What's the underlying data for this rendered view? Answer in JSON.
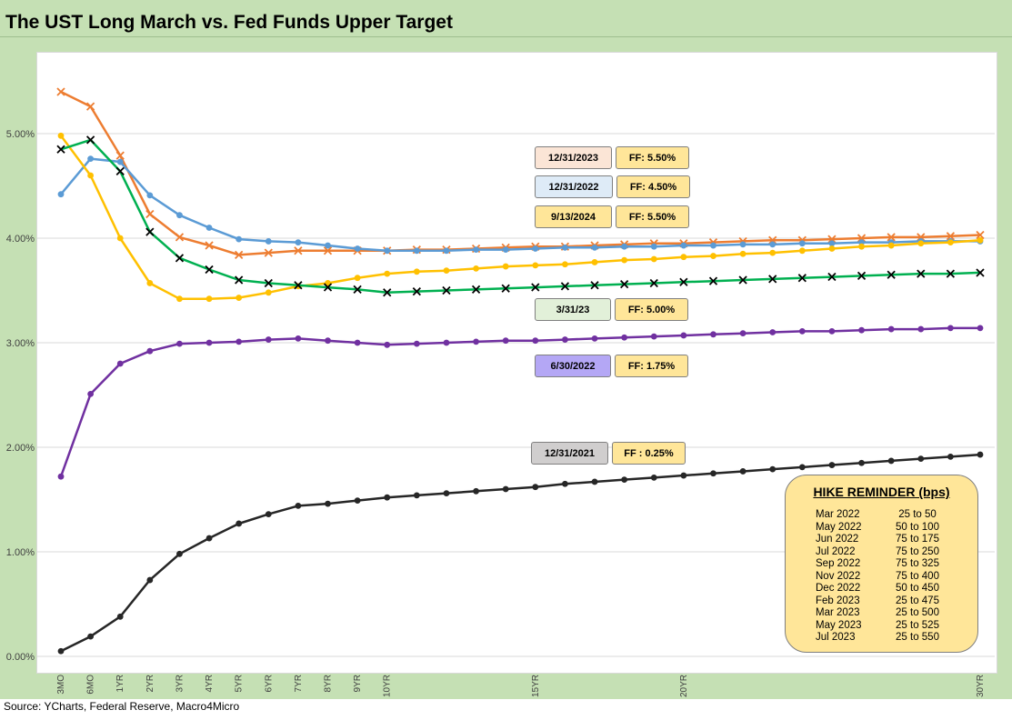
{
  "title": "The UST Long March vs. Fed Funds Upper Target",
  "source": "Source: YCharts, Federal Reserve, Macro4Micro",
  "chart_data": {
    "type": "line",
    "x_labels": [
      "3MO",
      "6MO",
      "1YR",
      "2YR",
      "3YR",
      "4YR",
      "5YR",
      "6YR",
      "7YR",
      "8YR",
      "9YR",
      "10YR",
      "",
      "",
      "",
      "",
      "15YR",
      "",
      "",
      "",
      "",
      "20YR",
      "",
      "",
      "",
      "",
      "",
      "",
      "",
      "",
      "",
      "30YR"
    ],
    "y_ticks": [
      "0.00%",
      "1.00%",
      "2.00%",
      "3.00%",
      "4.00%",
      "5.00%"
    ],
    "ylim": [
      0,
      5.5
    ],
    "grid": true,
    "series": [
      {
        "name": "12/31/2023",
        "color": "#ed7d31",
        "marker": "x",
        "values": [
          5.4,
          5.26,
          4.79,
          4.23,
          4.01,
          3.93,
          3.84,
          3.86,
          3.88,
          3.88,
          3.88,
          3.88,
          3.89,
          3.89,
          3.9,
          3.91,
          3.92,
          3.92,
          3.93,
          3.94,
          3.95,
          3.95,
          3.96,
          3.97,
          3.98,
          3.98,
          3.99,
          4.0,
          4.01,
          4.01,
          4.02,
          4.03
        ]
      },
      {
        "name": "12/31/2022",
        "color": "#5b9bd5",
        "marker": "dot",
        "values": [
          4.42,
          4.76,
          4.73,
          4.41,
          4.22,
          4.1,
          3.99,
          3.97,
          3.96,
          3.93,
          3.9,
          3.88,
          3.88,
          3.88,
          3.89,
          3.89,
          3.9,
          3.91,
          3.91,
          3.92,
          3.92,
          3.93,
          3.93,
          3.94,
          3.94,
          3.95,
          3.95,
          3.96,
          3.96,
          3.97,
          3.97,
          3.97
        ]
      },
      {
        "name": "9/13/2024",
        "color": "#ffc000",
        "marker": "dot",
        "values": [
          4.98,
          4.6,
          4.0,
          3.57,
          3.42,
          3.42,
          3.43,
          3.48,
          3.54,
          3.57,
          3.62,
          3.66,
          3.68,
          3.69,
          3.71,
          3.73,
          3.74,
          3.75,
          3.77,
          3.79,
          3.8,
          3.82,
          3.83,
          3.85,
          3.86,
          3.88,
          3.9,
          3.92,
          3.93,
          3.95,
          3.96,
          3.98
        ]
      },
      {
        "name": "3/31/23",
        "color": "#00b050",
        "marker": "x",
        "values": [
          4.85,
          4.94,
          4.64,
          4.06,
          3.81,
          3.7,
          3.6,
          3.57,
          3.55,
          3.53,
          3.51,
          3.48,
          3.49,
          3.5,
          3.51,
          3.52,
          3.53,
          3.54,
          3.55,
          3.56,
          3.57,
          3.58,
          3.59,
          3.6,
          3.61,
          3.62,
          3.63,
          3.64,
          3.65,
          3.66,
          3.66,
          3.67
        ]
      },
      {
        "name": "6/30/2022",
        "color": "#7030a0",
        "marker": "dot",
        "values": [
          1.72,
          2.51,
          2.8,
          2.92,
          2.99,
          3.0,
          3.01,
          3.03,
          3.04,
          3.02,
          3.0,
          2.98,
          2.99,
          3.0,
          3.01,
          3.02,
          3.02,
          3.03,
          3.04,
          3.05,
          3.06,
          3.07,
          3.08,
          3.09,
          3.1,
          3.11,
          3.11,
          3.12,
          3.13,
          3.13,
          3.14,
          3.14
        ]
      },
      {
        "name": "12/31/2021",
        "color": "#262626",
        "marker": "dot",
        "values": [
          0.05,
          0.19,
          0.38,
          0.73,
          0.98,
          1.13,
          1.27,
          1.36,
          1.44,
          1.46,
          1.49,
          1.52,
          1.54,
          1.56,
          1.58,
          1.6,
          1.62,
          1.65,
          1.67,
          1.69,
          1.71,
          1.73,
          1.75,
          1.77,
          1.79,
          1.81,
          1.83,
          1.85,
          1.87,
          1.89,
          1.91,
          1.93
        ]
      }
    ]
  },
  "legend_boxes": [
    {
      "date": "12/31/2023",
      "ff": "FF:  5.50%",
      "date_color": "#fbe5d6"
    },
    {
      "date": "12/31/2022",
      "ff": "FF:  4.50%",
      "date_color": "#deebf7"
    },
    {
      "date": "9/13/2024",
      "ff": "FF:  5.50%",
      "date_color": "#ffe699"
    },
    {
      "date": "3/31/23",
      "ff": "FF:  5.00%",
      "date_color": "#e2f0d9"
    },
    {
      "date": "6/30/2022",
      "ff": "FF: 1.75%",
      "date_color": "#b4a7f5"
    },
    {
      "date": "12/31/2021",
      "ff": "FF : 0.25%",
      "date_color": "#d0cece"
    }
  ],
  "ff_box_color": "#ffe699",
  "hike_reminder": {
    "title": "HIKE REMINDER (bps)",
    "rows": [
      {
        "month": "Mar 2022",
        "value": "25 to 50"
      },
      {
        "month": "May 2022",
        "value": "50 to 100"
      },
      {
        "month": "Jun 2022",
        "value": "75 to 175"
      },
      {
        "month": "Jul 2022",
        "value": "75 to 250"
      },
      {
        "month": "Sep 2022",
        "value": "75 to 325"
      },
      {
        "month": "Nov 2022",
        "value": "75 to 400"
      },
      {
        "month": "Dec 2022",
        "value": "50 to 450"
      },
      {
        "month": "Feb 2023",
        "value": "25 to 475"
      },
      {
        "month": "Mar 2023",
        "value": "25 to 500"
      },
      {
        "month": "May 2023",
        "value": "25 to 525"
      },
      {
        "month": "Jul 2023",
        "value": "25 to 550"
      }
    ]
  }
}
